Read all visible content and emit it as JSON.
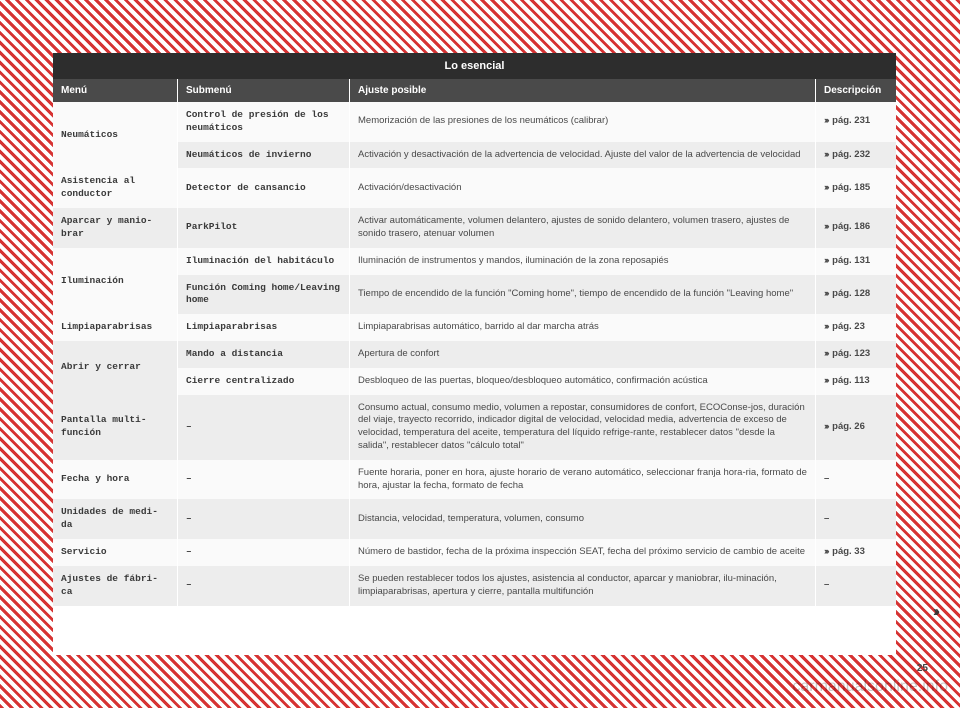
{
  "title": "Lo esencial",
  "headers": {
    "menu": "Menú",
    "submenu": "Submenú",
    "ajuste": "Ajuste posible",
    "desc": "Descripción"
  },
  "rows": [
    {
      "shade": "light",
      "menu": "Neumáticos",
      "menuRowspan": 2,
      "submenu": "Control de presión de los neumáticos",
      "ajuste": "Memorización de las presiones de los neumáticos (calibrar)",
      "desc": "››› pág. 231"
    },
    {
      "shade": "dark",
      "submenu": "Neumáticos de invierno",
      "ajuste": "Activación y desactivación de la advertencia de velocidad. Ajuste del valor de la advertencia de velocidad",
      "desc": "››› pág. 232"
    },
    {
      "shade": "light",
      "menu": "Asistencia al conductor",
      "submenu": "Detector de cansancio",
      "ajuste": "Activación/desactivación",
      "desc": "››› pág. 185"
    },
    {
      "shade": "dark",
      "menu": "Aparcar y manio-brar",
      "submenu": "ParkPilot",
      "ajuste": "Activar automáticamente, volumen delantero, ajustes de sonido delantero, volumen trasero, ajustes de sonido trasero, atenuar volumen",
      "desc": "››› pág. 186"
    },
    {
      "shade": "light",
      "menu": "Iluminación",
      "menuRowspan": 2,
      "submenu": "Iluminación del habitáculo",
      "ajuste": "Iluminación de instrumentos y mandos, iluminación de la zona reposapiés",
      "desc": "››› pág. 131"
    },
    {
      "shade": "dark",
      "submenu": "Función Coming home/Leaving home",
      "ajuste": "Tiempo de encendido de la función \"Coming home\", tiempo de encendido de la función \"Leaving home\"",
      "desc": "››› pág. 128"
    },
    {
      "shade": "light",
      "menu": "Limpiaparabrisas",
      "submenu": "Limpiaparabrisas",
      "ajuste": "Limpiaparabrisas automático, barrido al dar marcha atrás",
      "desc": "››› pág. 23"
    },
    {
      "shade": "dark",
      "menu": "Abrir y cerrar",
      "menuRowspan": 2,
      "submenu": "Mando a distancia",
      "ajuste": "Apertura de confort",
      "desc": "››› pág. 123"
    },
    {
      "shade": "light",
      "submenu": "Cierre centralizado",
      "ajuste": "Desbloqueo de las puertas, bloqueo/desbloqueo automático, confirmación acústica",
      "desc": "››› pág. 113"
    },
    {
      "shade": "dark",
      "menu": "Pantalla multi-función",
      "submenu": "–",
      "ajuste": "Consumo actual, consumo medio, volumen a repostar, consumidores de confort, ECOConse-jos, duración del viaje, trayecto recorrido, indicador digital de velocidad, velocidad media, advertencia de exceso de velocidad, temperatura del aceite, temperatura del líquido refrige-rante, restablecer datos \"desde la salida\", restablecer datos \"cálculo total\"",
      "desc": "››› pág. 26"
    },
    {
      "shade": "light",
      "menu": "Fecha y hora",
      "submenu": "–",
      "ajuste": "Fuente horaria, poner en hora, ajuste horario de verano automático, seleccionar franja hora-ria, formato de hora, ajustar la fecha, formato de fecha",
      "desc": "–"
    },
    {
      "shade": "dark",
      "menu": "Unidades de medi-da",
      "submenu": "–",
      "ajuste": "Distancia, velocidad, temperatura, volumen, consumo",
      "desc": "–"
    },
    {
      "shade": "light",
      "menu": "Servicio",
      "submenu": "–",
      "ajuste": "Número de bastidor, fecha de la próxima inspección SEAT, fecha del próximo servicio de cambio de aceite",
      "desc": "››› pág. 33"
    },
    {
      "shade": "dark",
      "menu": "Ajustes de fábri-ca",
      "submenu": "–",
      "ajuste": "Se pueden restablecer todos los ajustes, asistencia al conductor, aparcar y maniobrar, ilu-minación, limpiaparabrisas, apertura y cierre, pantalla multifunción",
      "desc": "–"
    }
  ],
  "pagenum": "25",
  "continue": "››",
  "watermark": "carmanualsonline.info"
}
